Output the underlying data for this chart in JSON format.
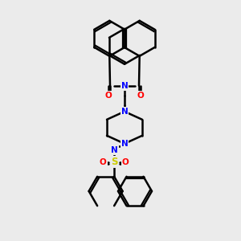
{
  "background_color": "#ebebeb",
  "line_color": "#000000",
  "bond_width": 1.8,
  "atom_colors": {
    "N": "#0000ff",
    "O": "#ff0000",
    "S": "#cccc00"
  },
  "font_size": 7.5
}
